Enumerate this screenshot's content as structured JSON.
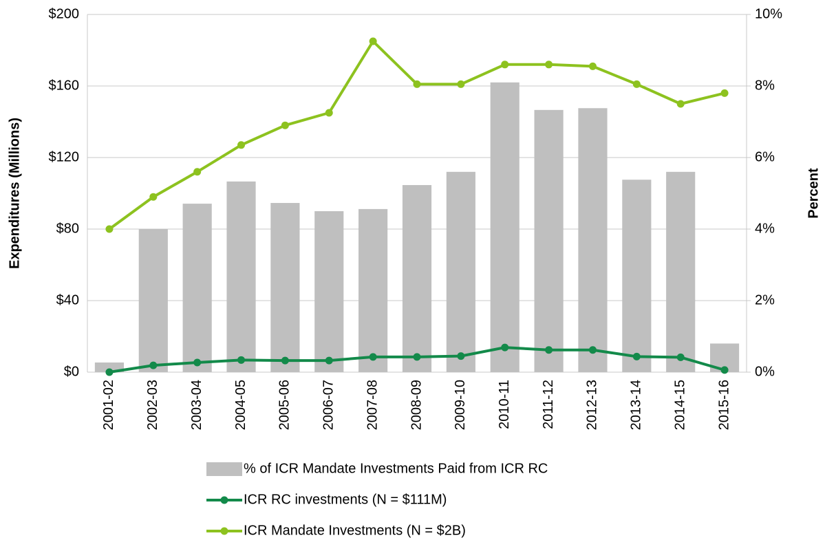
{
  "chart_data": {
    "type": "bar_line",
    "y_label": "Expenditures (Millions)",
    "y2_label": "Percent",
    "categories": [
      "2001-02",
      "2002-03",
      "2003-04",
      "2004-05",
      "2005-06",
      "2006-07",
      "2007-08",
      "2008-09",
      "2009-10",
      "2010-11",
      "2011-12",
      "2012-13",
      "2013-14",
      "2014-15",
      "2015-16"
    ],
    "series": [
      {
        "name": "% of ICR Mandate Investments Paid from ICR RC",
        "type": "bar",
        "axis": "y2",
        "color": "#bfbfbf",
        "values": [
          0.27,
          4.0,
          4.71,
          5.33,
          4.73,
          4.5,
          4.56,
          5.23,
          5.6,
          8.1,
          7.33,
          7.38,
          5.38,
          5.6,
          0.8
        ]
      },
      {
        "name": "ICR RC investments (N = $111M)",
        "type": "line",
        "axis": "y",
        "color": "#138a4a",
        "values": [
          0,
          3.8,
          5.4,
          6.8,
          6.5,
          6.5,
          8.5,
          8.5,
          9,
          13.8,
          12.4,
          12.4,
          8.7,
          8.3,
          1.2
        ]
      },
      {
        "name": "ICR Mandate Investments (N = $2B)",
        "type": "line",
        "axis": "y",
        "color": "#8dc21f",
        "values": [
          80,
          98,
          112,
          127,
          138,
          145,
          185,
          161,
          161,
          172,
          172,
          171,
          161,
          150,
          156
        ]
      }
    ],
    "ylim": [
      0,
      200
    ],
    "yticks": [
      {
        "value": 0,
        "label": "$0"
      },
      {
        "value": 40,
        "label": "$40"
      },
      {
        "value": 80,
        "label": "$80"
      },
      {
        "value": 120,
        "label": "$120"
      },
      {
        "value": 160,
        "label": "$160"
      },
      {
        "value": 200,
        "label": "$200"
      }
    ],
    "y2lim": [
      0,
      10
    ],
    "y2ticks": [
      {
        "value": 0,
        "label": "0%"
      },
      {
        "value": 2,
        "label": "2%"
      },
      {
        "value": 4,
        "label": "4%"
      },
      {
        "value": 6,
        "label": "6%"
      },
      {
        "value": 8,
        "label": "8%"
      },
      {
        "value": 10,
        "label": "10%"
      }
    ],
    "grid": true,
    "legend": "bottom"
  }
}
